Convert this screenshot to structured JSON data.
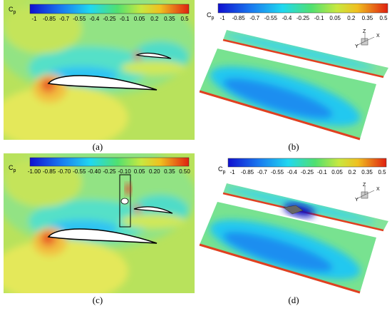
{
  "panels": [
    {
      "label": "(a)",
      "colorbar": {
        "symbol": "C",
        "subscript": "p",
        "ticks": [
          "-1",
          "-0.85",
          "-0.7",
          "-0.55",
          "-0.4",
          "-0.25",
          "-0.1",
          "0.05",
          "0.2",
          "0.35",
          "0.5"
        ]
      }
    },
    {
      "label": "(b)",
      "colorbar": {
        "symbol": "C",
        "subscript": "p",
        "ticks": [
          "-1",
          "-0.85",
          "-0.7",
          "-0.55",
          "-0.4",
          "-0.25",
          "-0.1",
          "0.05",
          "0.2",
          "0.35",
          "0.5"
        ]
      },
      "axes": [
        "X",
        "Y",
        "Z"
      ]
    },
    {
      "label": "(c)",
      "colorbar": {
        "symbol": "C",
        "subscript": "p",
        "ticks": [
          "-1.00",
          "-0.85",
          "-0.70",
          "-0.55",
          "-0.40",
          "-0.25",
          "-0.10",
          "0.05",
          "0.20",
          "0.35",
          "0.50"
        ]
      }
    },
    {
      "label": "(d)",
      "colorbar": {
        "symbol": "C",
        "subscript": "p",
        "ticks": [
          "-1",
          "-0.85",
          "-0.7",
          "-0.55",
          "-0.4",
          "-0.25",
          "-0.1",
          "0.05",
          "0.2",
          "0.35",
          "0.5"
        ]
      },
      "axes": [
        "X",
        "Y",
        "Z"
      ]
    }
  ]
}
